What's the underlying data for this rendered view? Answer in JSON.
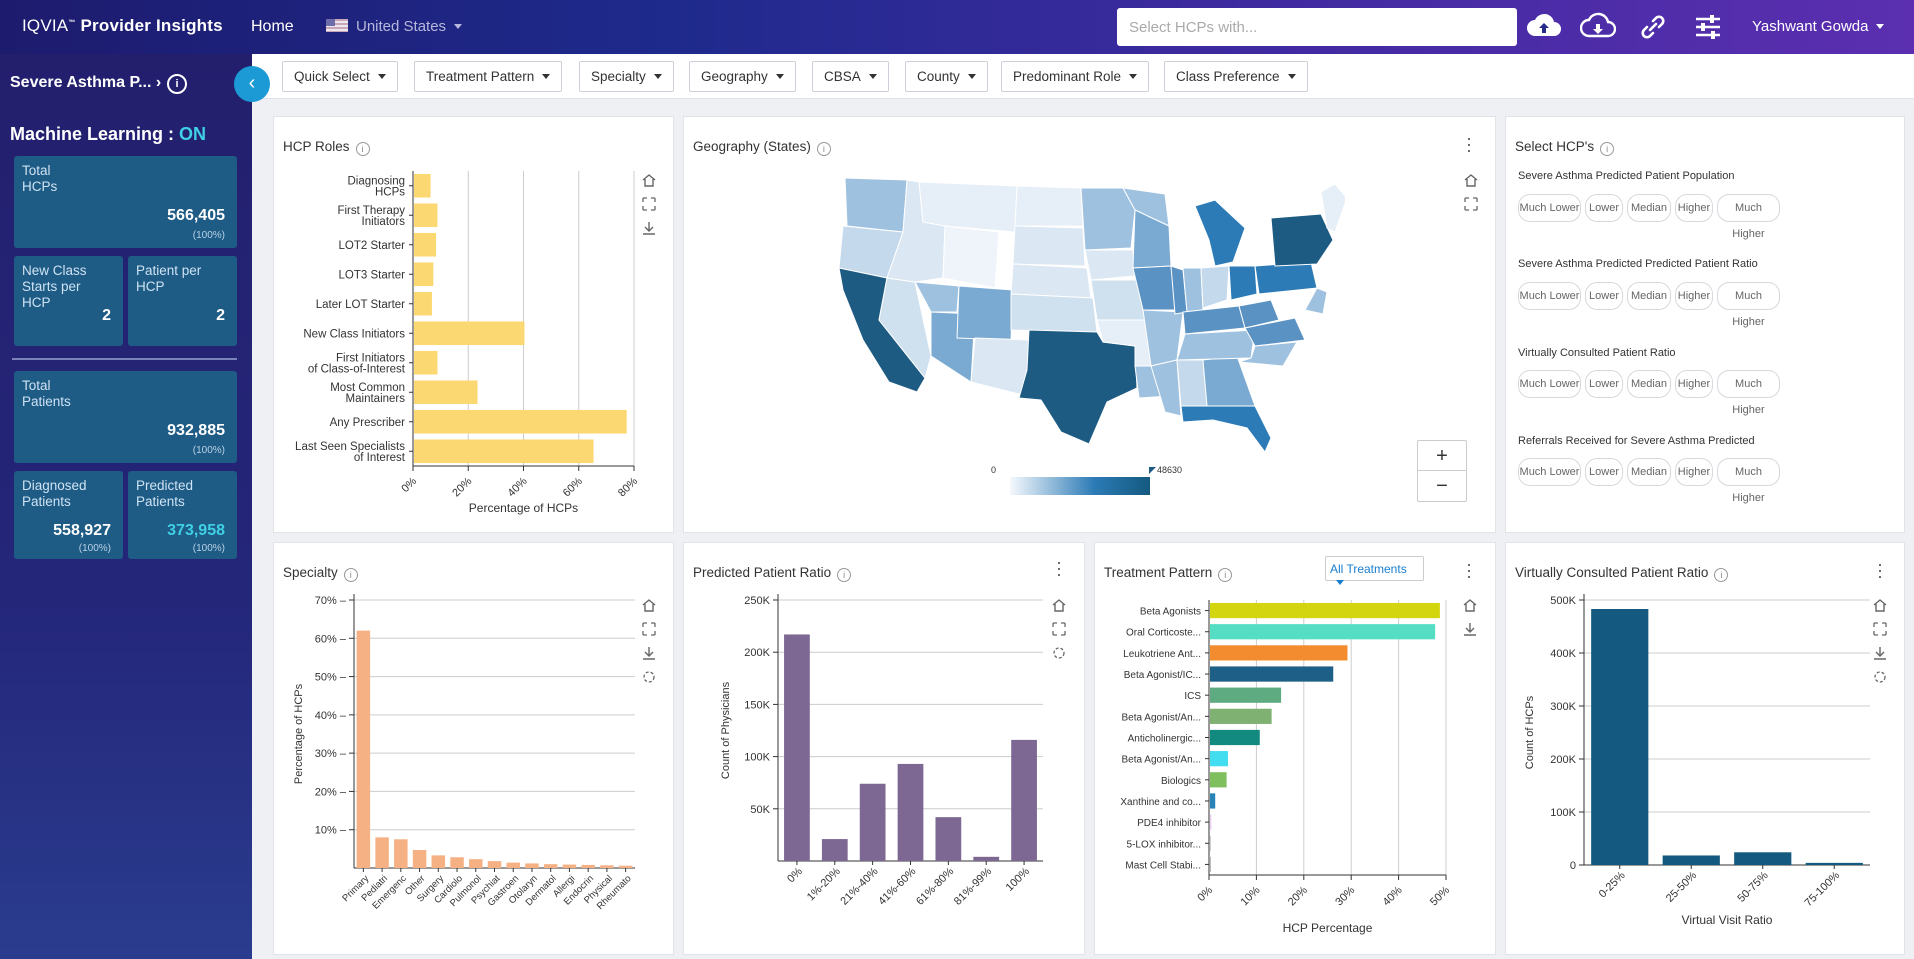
{
  "header": {
    "brand_pre": "IQVIA",
    "brand_tm": "™",
    "brand_main": "Provider Insights",
    "home": "Home",
    "country": "United States",
    "search_placeholder": "Select HCPs with...",
    "user": "Yashwant Gowda",
    "icons": [
      "cloud-upload-icon",
      "cloud-download-icon",
      "link-icon",
      "sliders-icon"
    ]
  },
  "sidebar": {
    "title": "Severe Asthma P...",
    "title_arrow": "›",
    "info": "i",
    "ml_label": "Machine Learning :",
    "ml_value": "ON",
    "collapse_icon": "‹",
    "cards": {
      "total_hcps": {
        "label1": "Total",
        "label2": "HCPs",
        "value": "566,405",
        "pct": "(100%)"
      },
      "new_class": {
        "label1": "New Class",
        "label2": "Starts per",
        "label3": "HCP",
        "value": "2"
      },
      "patient_per": {
        "label1": "Patient per",
        "label2": "HCP",
        "value": "2"
      },
      "total_patients": {
        "label1": "Total",
        "label2": "Patients",
        "value": "932,885",
        "pct": "(100%)"
      },
      "diagnosed": {
        "label1": "Diagnosed",
        "label2": "Patients",
        "value": "558,927",
        "pct": "(100%)"
      },
      "predicted": {
        "label1": "Predicted",
        "label2": "Patients",
        "value": "373,958",
        "pct": "(100%)"
      }
    },
    "colors": {
      "accent": "#3fd0e6"
    }
  },
  "filters": [
    "Quick Select",
    "Treatment Pattern",
    "Specialty",
    "Geography",
    "CBSA",
    "County",
    "Predominant Role",
    "Class Preference"
  ],
  "panels": {
    "hcp_roles": "HCP Roles",
    "geography": "Geography (States)",
    "select_hcps": "Select HCP's",
    "specialty": "Specialty",
    "predicted_ratio": "Predicted Patient Ratio",
    "treatment_pattern": "Treatment Pattern",
    "virtual_ratio": "Virtually Consulted Patient Ratio",
    "info": "i",
    "all_treatments": "All Treatments"
  },
  "map": {
    "legend_min": "0",
    "legend_max": "48630",
    "zoom_in": "+",
    "zoom_out": "−"
  },
  "select_hcps": {
    "groups": [
      "Severe Asthma Predicted Patient Population",
      "Severe Asthma Predicted Predicted Patient Ratio",
      "Virtually Consulted Patient Ratio",
      "Referrals Received for Severe Asthma Predicted"
    ],
    "options": [
      "Much Lower",
      "Lower",
      "Median",
      "Higher",
      "Much Higher"
    ]
  },
  "chart_data": [
    {
      "id": "hcp_roles",
      "type": "bar",
      "orientation": "horizontal",
      "categories": [
        [
          "Diagnosing",
          "HCPs"
        ],
        [
          "First Therapy",
          "Initiators"
        ],
        [
          "LOT2 Starter"
        ],
        [
          "LOT3 Starter"
        ],
        [
          "Later LOT Starter"
        ],
        [
          "New Class Initiators"
        ],
        [
          "First Initiators",
          "of Class-of-Interest"
        ],
        [
          "Most Common",
          "Maintainers"
        ],
        [
          "Any Prescriber"
        ],
        [
          "Last Seen Specialists",
          "of Interest"
        ]
      ],
      "values": [
        6,
        8.5,
        8,
        7,
        6.5,
        40,
        8.5,
        23,
        77,
        65
      ],
      "xlabel": "Percentage of HCPs",
      "xticks": [
        "0%",
        "20%",
        "40%",
        "60%",
        "80%"
      ],
      "xlim": [
        0,
        80
      ],
      "color": "#fcd873"
    },
    {
      "id": "specialty",
      "type": "bar",
      "categories": [
        "Primary",
        "Pediatri",
        "Emergenc",
        "Other",
        "Surgery",
        "Cardiolo",
        "Pulmonol",
        "Psychiat",
        "Gastroen",
        "Otolaryn",
        "Dermatol",
        "Allergi",
        "Endocrin",
        "Physical",
        "Rheumato"
      ],
      "values": [
        62,
        8,
        7.5,
        4.7,
        3.3,
        2.8,
        2.3,
        1.8,
        1.4,
        1.2,
        1,
        0.9,
        0.8,
        0.7,
        0.6
      ],
      "ylabel": "Percentage of HCPs",
      "yticks": [
        "10%",
        "20%",
        "30%",
        "40%",
        "50%",
        "60%",
        "70%"
      ],
      "ylim": [
        0,
        70
      ],
      "color": "#f5b183"
    },
    {
      "id": "predicted_ratio",
      "type": "bar",
      "categories": [
        "0%",
        "1%-20%",
        "21%-40%",
        "41%-60%",
        "61%-80%",
        "81%-99%",
        "100%"
      ],
      "values": [
        217000,
        21000,
        74000,
        93000,
        42000,
        4000,
        116000
      ],
      "ylabel": "Count of Physicians",
      "yticks": [
        "50K",
        "100K",
        "150K",
        "200K",
        "250K"
      ],
      "ylim": [
        0,
        250000
      ],
      "color": "#7d6893"
    },
    {
      "id": "treatment_pattern",
      "type": "bar",
      "orientation": "horizontal",
      "categories": [
        "Beta Agonists",
        "Oral Corticoste...",
        "Leukotriene Ant...",
        "Beta Agonist/IC...",
        "ICS",
        "Beta Agonist/An...",
        "Anticholinergic...",
        "Beta Agonist/An...",
        "Biologics",
        "Xanthine and co...",
        "PDE4 inhibitor",
        "5-LOX inhibitor...",
        "Mast Cell Stabi..."
      ],
      "values": [
        48.5,
        47.5,
        29,
        26,
        15,
        13,
        10.5,
        3.8,
        3.5,
        1.1,
        0.3,
        0.2,
        0.1
      ],
      "colors": [
        "#d3d60f",
        "#55dec3",
        "#f38c2e",
        "#1e5f87",
        "#5eab81",
        "#7fb272",
        "#128a7f",
        "#42def0",
        "#80bf5d",
        "#2a83b6",
        "#ead1f4",
        "#cccccc",
        "#bbbbbb"
      ],
      "xlabel": "HCP Percentage",
      "xticks": [
        "0%",
        "10%",
        "20%",
        "30%",
        "40%",
        "50%"
      ],
      "xlim": [
        0,
        50
      ]
    },
    {
      "id": "virtual_ratio",
      "type": "bar",
      "categories": [
        "0-25%",
        "25-50%",
        "50-75%",
        "75-100%"
      ],
      "values": [
        483000,
        18000,
        24000,
        4000
      ],
      "xlabel": "Virtual Visit Ratio",
      "ylabel": "Count of HCPs",
      "yticks": [
        "0",
        "100K",
        "200K",
        "300K",
        "400K",
        "500K"
      ],
      "ylim": [
        0,
        500000
      ],
      "color": "#145a80"
    }
  ]
}
